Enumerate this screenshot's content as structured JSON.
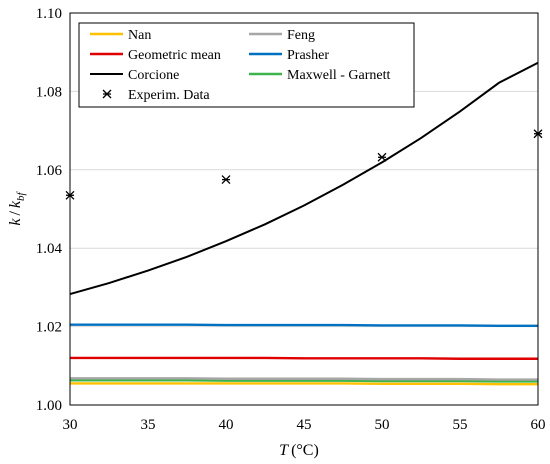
{
  "chart_data": {
    "type": "line",
    "xlabel": "T",
    "xlabel_unit": "(°C)",
    "ylabel": "k",
    "ylabel_sub_base": "k",
    "ylabel_sub": "bf",
    "xlim": [
      30,
      60
    ],
    "ylim": [
      1.0,
      1.1
    ],
    "x_ticks": [
      30,
      35,
      40,
      45,
      50,
      55,
      60
    ],
    "y_ticks": [
      1.0,
      1.02,
      1.04,
      1.06,
      1.08,
      1.1
    ],
    "y_tick_labels": [
      "1.00",
      "1.02",
      "1.04",
      "1.06",
      "1.08",
      "1.10"
    ],
    "grid": "horizontal",
    "legend_position": "top",
    "x": [
      30,
      32.5,
      35,
      37.5,
      40,
      42.5,
      45,
      47.5,
      50,
      52.5,
      55,
      57.5,
      60
    ],
    "series": [
      {
        "name": "Nan",
        "color": "#ffc000",
        "values": [
          1.0055,
          1.0055,
          1.0055,
          1.0055,
          1.0055,
          1.0055,
          1.0055,
          1.0055,
          1.0054,
          1.0054,
          1.0054,
          1.0053,
          1.0053
        ]
      },
      {
        "name": "Feng",
        "color": "#a6a6a6",
        "values": [
          1.0068,
          1.0068,
          1.0068,
          1.0068,
          1.0067,
          1.0067,
          1.0067,
          1.0067,
          1.0066,
          1.0066,
          1.0066,
          1.0065,
          1.0065
        ]
      },
      {
        "name": "Geometric mean",
        "color": "#e00000",
        "values": [
          1.012,
          1.012,
          1.012,
          1.012,
          1.012,
          1.012,
          1.0119,
          1.0119,
          1.0119,
          1.0119,
          1.0118,
          1.0118,
          1.0118
        ]
      },
      {
        "name": "Prasher",
        "color": "#0070c0",
        "values": [
          1.0205,
          1.0205,
          1.0205,
          1.0205,
          1.0204,
          1.0204,
          1.0204,
          1.0204,
          1.0203,
          1.0203,
          1.0203,
          1.0202,
          1.0202
        ]
      },
      {
        "name": "Corcione",
        "color": "#000000",
        "values": [
          1.0283,
          1.0311,
          1.0343,
          1.0378,
          1.0418,
          1.0461,
          1.0509,
          1.0562,
          1.0619,
          1.0681,
          1.0749,
          1.0822,
          1.0873
        ]
      },
      {
        "name": "Maxwell - Garnett",
        "color": "#3cb44b",
        "values": [
          1.0063,
          1.0063,
          1.0063,
          1.0063,
          1.0062,
          1.0062,
          1.0062,
          1.0062,
          1.0061,
          1.0061,
          1.0061,
          1.006,
          1.006
        ]
      }
    ],
    "experimental": {
      "name": "Experim. Data",
      "points": [
        {
          "x": 30,
          "y": 1.0535
        },
        {
          "x": 40,
          "y": 1.0575
        },
        {
          "x": 50,
          "y": 1.0632
        },
        {
          "x": 60,
          "y": 1.0692
        }
      ]
    }
  }
}
